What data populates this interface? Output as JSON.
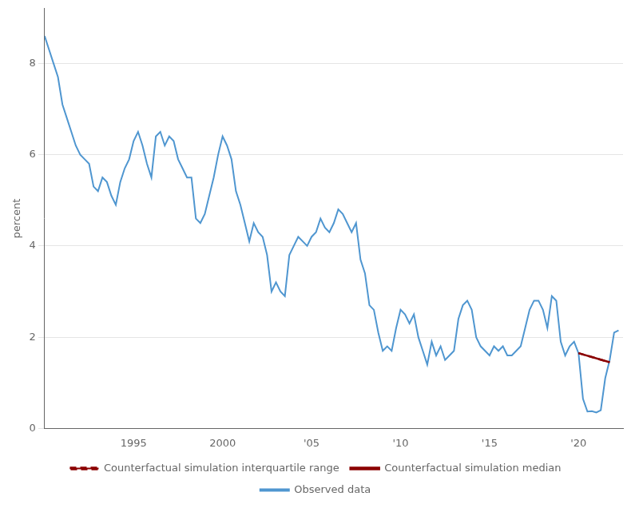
{
  "chart_data": {
    "type": "line",
    "y_label": "percent",
    "xlim": [
      1990.0,
      2022.5
    ],
    "ylim": [
      0,
      9.2
    ],
    "yticks": [
      0,
      2,
      4,
      6,
      8
    ],
    "xticks": [
      1995,
      2000,
      {
        "value": 2005,
        "label": "'05"
      },
      {
        "value": 2010,
        "label": "'10"
      },
      {
        "value": 2015,
        "label": "'15"
      },
      {
        "value": 2020,
        "label": "'20"
      }
    ],
    "grid": "y",
    "legend": "bottom",
    "series": [
      {
        "name": "Observed data",
        "color": "#4f96d0",
        "line_style": "solid",
        "x": [
          1990.0,
          1990.25,
          1990.5,
          1990.75,
          1991.0,
          1991.25,
          1991.5,
          1991.75,
          1992.0,
          1992.25,
          1992.5,
          1992.75,
          1993.0,
          1993.25,
          1993.5,
          1993.75,
          1994.0,
          1994.25,
          1994.5,
          1994.75,
          1995.0,
          1995.25,
          1995.5,
          1995.75,
          1996.0,
          1996.25,
          1996.5,
          1996.75,
          1997.0,
          1997.25,
          1997.5,
          1997.75,
          1998.0,
          1998.25,
          1998.5,
          1998.75,
          1999.0,
          1999.25,
          1999.5,
          1999.75,
          2000.0,
          2000.25,
          2000.5,
          2000.75,
          2001.0,
          2001.25,
          2001.5,
          2001.75,
          2002.0,
          2002.25,
          2002.5,
          2002.75,
          2003.0,
          2003.25,
          2003.5,
          2003.75,
          2004.0,
          2004.25,
          2004.5,
          2004.75,
          2005.0,
          2005.25,
          2005.5,
          2005.75,
          2006.0,
          2006.25,
          2006.5,
          2006.75,
          2007.0,
          2007.25,
          2007.5,
          2007.75,
          2008.0,
          2008.25,
          2008.5,
          2008.75,
          2009.0,
          2009.25,
          2009.5,
          2009.75,
          2010.0,
          2010.25,
          2010.5,
          2010.75,
          2011.0,
          2011.25,
          2011.5,
          2011.75,
          2012.0,
          2012.25,
          2012.5,
          2012.75,
          2013.0,
          2013.25,
          2013.5,
          2013.75,
          2014.0,
          2014.25,
          2014.5,
          2014.75,
          2015.0,
          2015.25,
          2015.5,
          2015.75,
          2016.0,
          2016.25,
          2016.5,
          2016.75,
          2017.0,
          2017.25,
          2017.5,
          2017.75,
          2018.0,
          2018.25,
          2018.5,
          2018.75,
          2019.0,
          2019.25,
          2019.5,
          2019.75,
          2020.0,
          2020.25,
          2020.5,
          2020.75,
          2021.0,
          2021.25,
          2021.5,
          2021.75,
          2022.0,
          2022.25
        ],
        "values": [
          8.6,
          8.3,
          8.0,
          7.7,
          7.1,
          6.8,
          6.5,
          6.2,
          6.0,
          5.9,
          5.8,
          5.3,
          5.2,
          5.5,
          5.4,
          5.1,
          4.9,
          5.4,
          5.7,
          5.9,
          6.3,
          6.5,
          6.2,
          5.8,
          5.5,
          6.4,
          6.5,
          6.2,
          6.4,
          6.3,
          5.9,
          5.7,
          5.5,
          5.5,
          4.6,
          4.5,
          4.7,
          5.1,
          5.5,
          6.0,
          6.4,
          6.2,
          5.9,
          5.2,
          4.9,
          4.5,
          4.1,
          4.5,
          4.3,
          4.2,
          3.8,
          3.0,
          3.2,
          3.0,
          2.9,
          3.8,
          4.0,
          4.2,
          4.1,
          4.0,
          4.2,
          4.3,
          4.6,
          4.4,
          4.3,
          4.5,
          4.8,
          4.7,
          4.5,
          4.3,
          4.5,
          3.7,
          3.4,
          2.7,
          2.6,
          2.1,
          1.7,
          1.8,
          1.7,
          2.2,
          2.6,
          2.5,
          2.3,
          2.5,
          2.0,
          1.7,
          1.4,
          1.9,
          1.6,
          1.8,
          1.5,
          1.6,
          1.7,
          2.4,
          2.7,
          2.8,
          2.6,
          2.0,
          1.8,
          1.7,
          1.6,
          1.8,
          1.7,
          1.8,
          1.6,
          1.6,
          1.7,
          1.8,
          2.2,
          2.6,
          2.8,
          2.8,
          2.6,
          2.2,
          2.9,
          2.8,
          1.9,
          1.6,
          1.8,
          1.9,
          1.65,
          0.65,
          0.37,
          0.38,
          0.35,
          0.4,
          1.1,
          1.5,
          2.1,
          2.15
        ]
      },
      {
        "name": "Counterfactual simulation median",
        "color": "#8b0000",
        "line_style": "solid",
        "x": [
          2020.0,
          2021.75
        ],
        "values": [
          1.65,
          1.45
        ]
      },
      {
        "name": "Counterfactual simulation interquartile range",
        "color": "#8b0000",
        "line_style": "dashed",
        "x": [
          2020.0,
          2021.75
        ],
        "values": [
          1.65,
          1.45
        ]
      }
    ]
  }
}
